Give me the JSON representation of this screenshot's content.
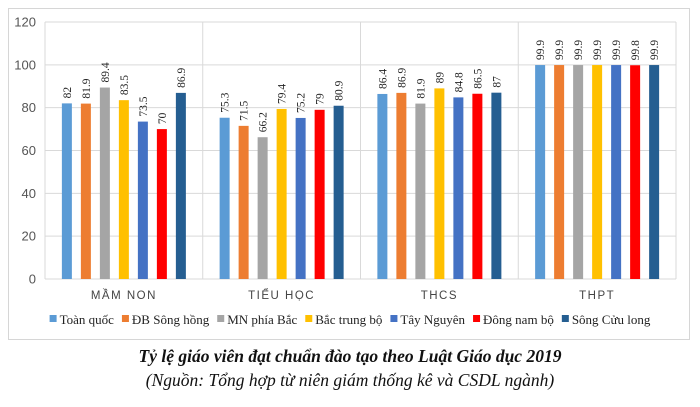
{
  "chart_data": {
    "type": "bar",
    "title": "Tỷ lệ giáo viên đạt chuẩn đào tạo theo Luật Giáo dục 2019",
    "subtitle": "(Nguồn: Tổng hợp từ niên giám thống kê và CSDL ngành)",
    "categories": [
      "MẦM NON",
      "TIỂU HỌC",
      "THCS",
      "THPT"
    ],
    "ylim": [
      0,
      120
    ],
    "yticks": [
      0,
      20,
      40,
      60,
      80,
      100,
      120
    ],
    "grid": true,
    "legend": "bottom",
    "series": [
      {
        "name": "Toàn quốc",
        "color": "#5b9bd5",
        "values": [
          82,
          75.3,
          86.4,
          99.9
        ]
      },
      {
        "name": "ĐB Sông hồng",
        "color": "#ed7d31",
        "values": [
          81.9,
          71.5,
          86.9,
          99.9
        ]
      },
      {
        "name": "MN phía Bắc",
        "color": "#a5a5a5",
        "values": [
          89.4,
          66.2,
          81.9,
          99.9
        ]
      },
      {
        "name": "Bắc trung bộ",
        "color": "#ffc000",
        "values": [
          83.5,
          79.4,
          89,
          99.9
        ]
      },
      {
        "name": "Tây Nguyên",
        "color": "#4472c4",
        "values": [
          73.5,
          75.2,
          84.8,
          99.9
        ]
      },
      {
        "name": "Đông nam bộ",
        "color": "#ff0000",
        "values": [
          70,
          79,
          86.5,
          99.8
        ]
      },
      {
        "name": "Sông Cửu long",
        "color": "#255e91",
        "values": [
          86.9,
          80.9,
          87,
          99.9
        ]
      }
    ]
  }
}
